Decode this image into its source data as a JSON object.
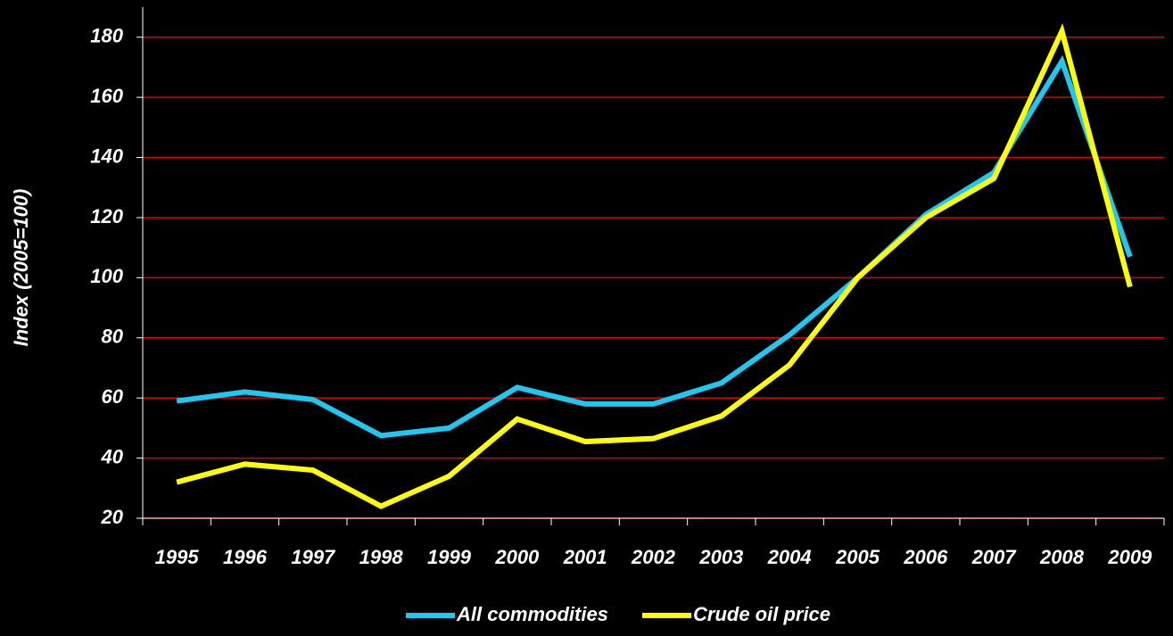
{
  "chart_data": {
    "type": "line",
    "y_label": "Index (2005=100)",
    "categories": [
      "1995",
      "1996",
      "1997",
      "1998",
      "1999",
      "2000",
      "2001",
      "2002",
      "2003",
      "2004",
      "2005",
      "2006",
      "2007",
      "2008",
      "2009"
    ],
    "series": [
      {
        "name": "All commodities",
        "color": "#1ec8f0",
        "values": [
          59,
          62,
          59.5,
          47.5,
          50,
          63.5,
          58,
          58,
          65,
          81,
          100,
          121,
          135,
          172,
          107
        ]
      },
      {
        "name": "Crude oil price",
        "color": "#ffff00",
        "values": [
          32,
          38,
          36,
          24,
          34,
          53,
          45.5,
          46.5,
          54,
          71,
          100,
          120,
          133,
          182,
          97
        ]
      }
    ],
    "ylim": [
      20,
      190
    ],
    "yticks": [
      20,
      40,
      60,
      80,
      100,
      120,
      140,
      160,
      180
    ],
    "grid": true,
    "grid_color": "#e00000",
    "legend": "bottom"
  }
}
